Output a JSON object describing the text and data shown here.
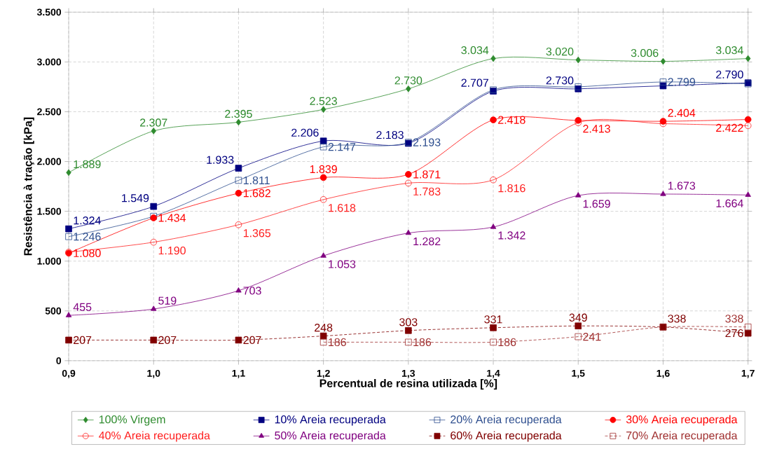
{
  "chart_data": {
    "type": "line",
    "xlabel": "Percentual de resina utilizada [%]",
    "ylabel": "Resistência à tração [kPa]",
    "x": [
      0.9,
      1.0,
      1.1,
      1.2,
      1.3,
      1.4,
      1.5,
      1.6,
      1.7
    ],
    "xlim": [
      0.9,
      1.7
    ],
    "xticks": [
      {
        "value": 0.9,
        "label": "0,9"
      },
      {
        "value": 1.0,
        "label": "1,0"
      },
      {
        "value": 1.1,
        "label": "1,1"
      },
      {
        "value": 1.2,
        "label": "1,2"
      },
      {
        "value": 1.3,
        "label": "1,3"
      },
      {
        "value": 1.4,
        "label": "1,4"
      },
      {
        "value": 1.5,
        "label": "1,5"
      },
      {
        "value": 1.6,
        "label": "1,6"
      },
      {
        "value": 1.7,
        "label": "1,7"
      }
    ],
    "ylim": [
      0,
      3500
    ],
    "yticks": [
      {
        "value": 0,
        "label": "0"
      },
      {
        "value": 500,
        "label": "500"
      },
      {
        "value": 1000,
        "label": "1.000"
      },
      {
        "value": 1500,
        "label": "1.500"
      },
      {
        "value": 2000,
        "label": "2.000"
      },
      {
        "value": 2500,
        "label": "2.500"
      },
      {
        "value": 3000,
        "label": "3.000"
      },
      {
        "value": 3500,
        "label": "3.500"
      }
    ],
    "grid": true,
    "legend": "bottom",
    "series": [
      {
        "name": "100% Virgem",
        "color": "#2e8b2e",
        "marker": "diamond",
        "values": [
          1889,
          2307,
          2395,
          2523,
          2730,
          3034,
          3020,
          3006,
          3034
        ],
        "value_labels": [
          "1.889",
          "2.307",
          "2.395",
          "2.523",
          "2.730",
          "3.034",
          "3.020",
          "3.006",
          "3.034"
        ]
      },
      {
        "name": "10% Areia recuperada",
        "color": "#000080",
        "marker": "square",
        "values": [
          1324,
          1549,
          1933,
          2206,
          2183,
          2707,
          2730,
          2760,
          2790
        ],
        "value_labels": [
          "1.324",
          "1.549",
          "1.933",
          "2.206",
          "2.183",
          "2.707",
          "2.730",
          null,
          "2.790"
        ]
      },
      {
        "name": "20% Areia recuperada",
        "color": "#2f4f8f",
        "marker": "square",
        "values": [
          1246,
          1450,
          1811,
          2147,
          2193,
          2720,
          2750,
          2799,
          2780
        ],
        "value_labels": [
          "1.246",
          null,
          "1.811",
          "2.147",
          "2.193",
          null,
          null,
          "2.799",
          null
        ]
      },
      {
        "name": "30% Areia recuperada",
        "color": "#ff0000",
        "marker": "circle",
        "values": [
          1080,
          1434,
          1682,
          1839,
          1871,
          2418,
          2413,
          2404,
          2422
        ],
        "value_labels": [
          "1.080",
          "1.434",
          "1.682",
          "1.839",
          "1.871",
          "2.418",
          "2.413",
          "2.404",
          "2.422"
        ]
      },
      {
        "name": "40% Areia recuperada",
        "color": "#ff2020",
        "marker": "circle",
        "values": [
          1090,
          1190,
          1365,
          1618,
          1783,
          1816,
          2390,
          2380,
          2360
        ],
        "value_labels": [
          null,
          "1.190",
          "1.365",
          "1.618",
          "1.783",
          "1.816",
          null,
          null,
          null
        ]
      },
      {
        "name": "50% Areia recuperada",
        "color": "#800080",
        "marker": "triangle",
        "values": [
          455,
          519,
          703,
          1053,
          1282,
          1342,
          1659,
          1673,
          1664
        ],
        "value_labels": [
          "455",
          "519",
          "703",
          "1.053",
          "1.282",
          "1.342",
          "1.659",
          "1.673",
          "1.664"
        ]
      },
      {
        "name": "60% Areia recuperada",
        "color": "#800000",
        "marker": "square",
        "line_style": "dashed",
        "values": [
          207,
          207,
          207,
          248,
          303,
          331,
          349,
          338,
          276
        ],
        "value_labels": [
          "207",
          "207",
          "207",
          "248",
          "303",
          "331",
          "349",
          "338",
          "276"
        ]
      },
      {
        "name": "70% Areia recuperada",
        "color": "#a03030",
        "marker": "square",
        "line_style": "dashed",
        "values": [
          null,
          null,
          null,
          186,
          186,
          186,
          241,
          338,
          338
        ],
        "value_labels": [
          null,
          null,
          null,
          "186",
          "186",
          "186",
          "241",
          null,
          "338"
        ]
      }
    ]
  }
}
